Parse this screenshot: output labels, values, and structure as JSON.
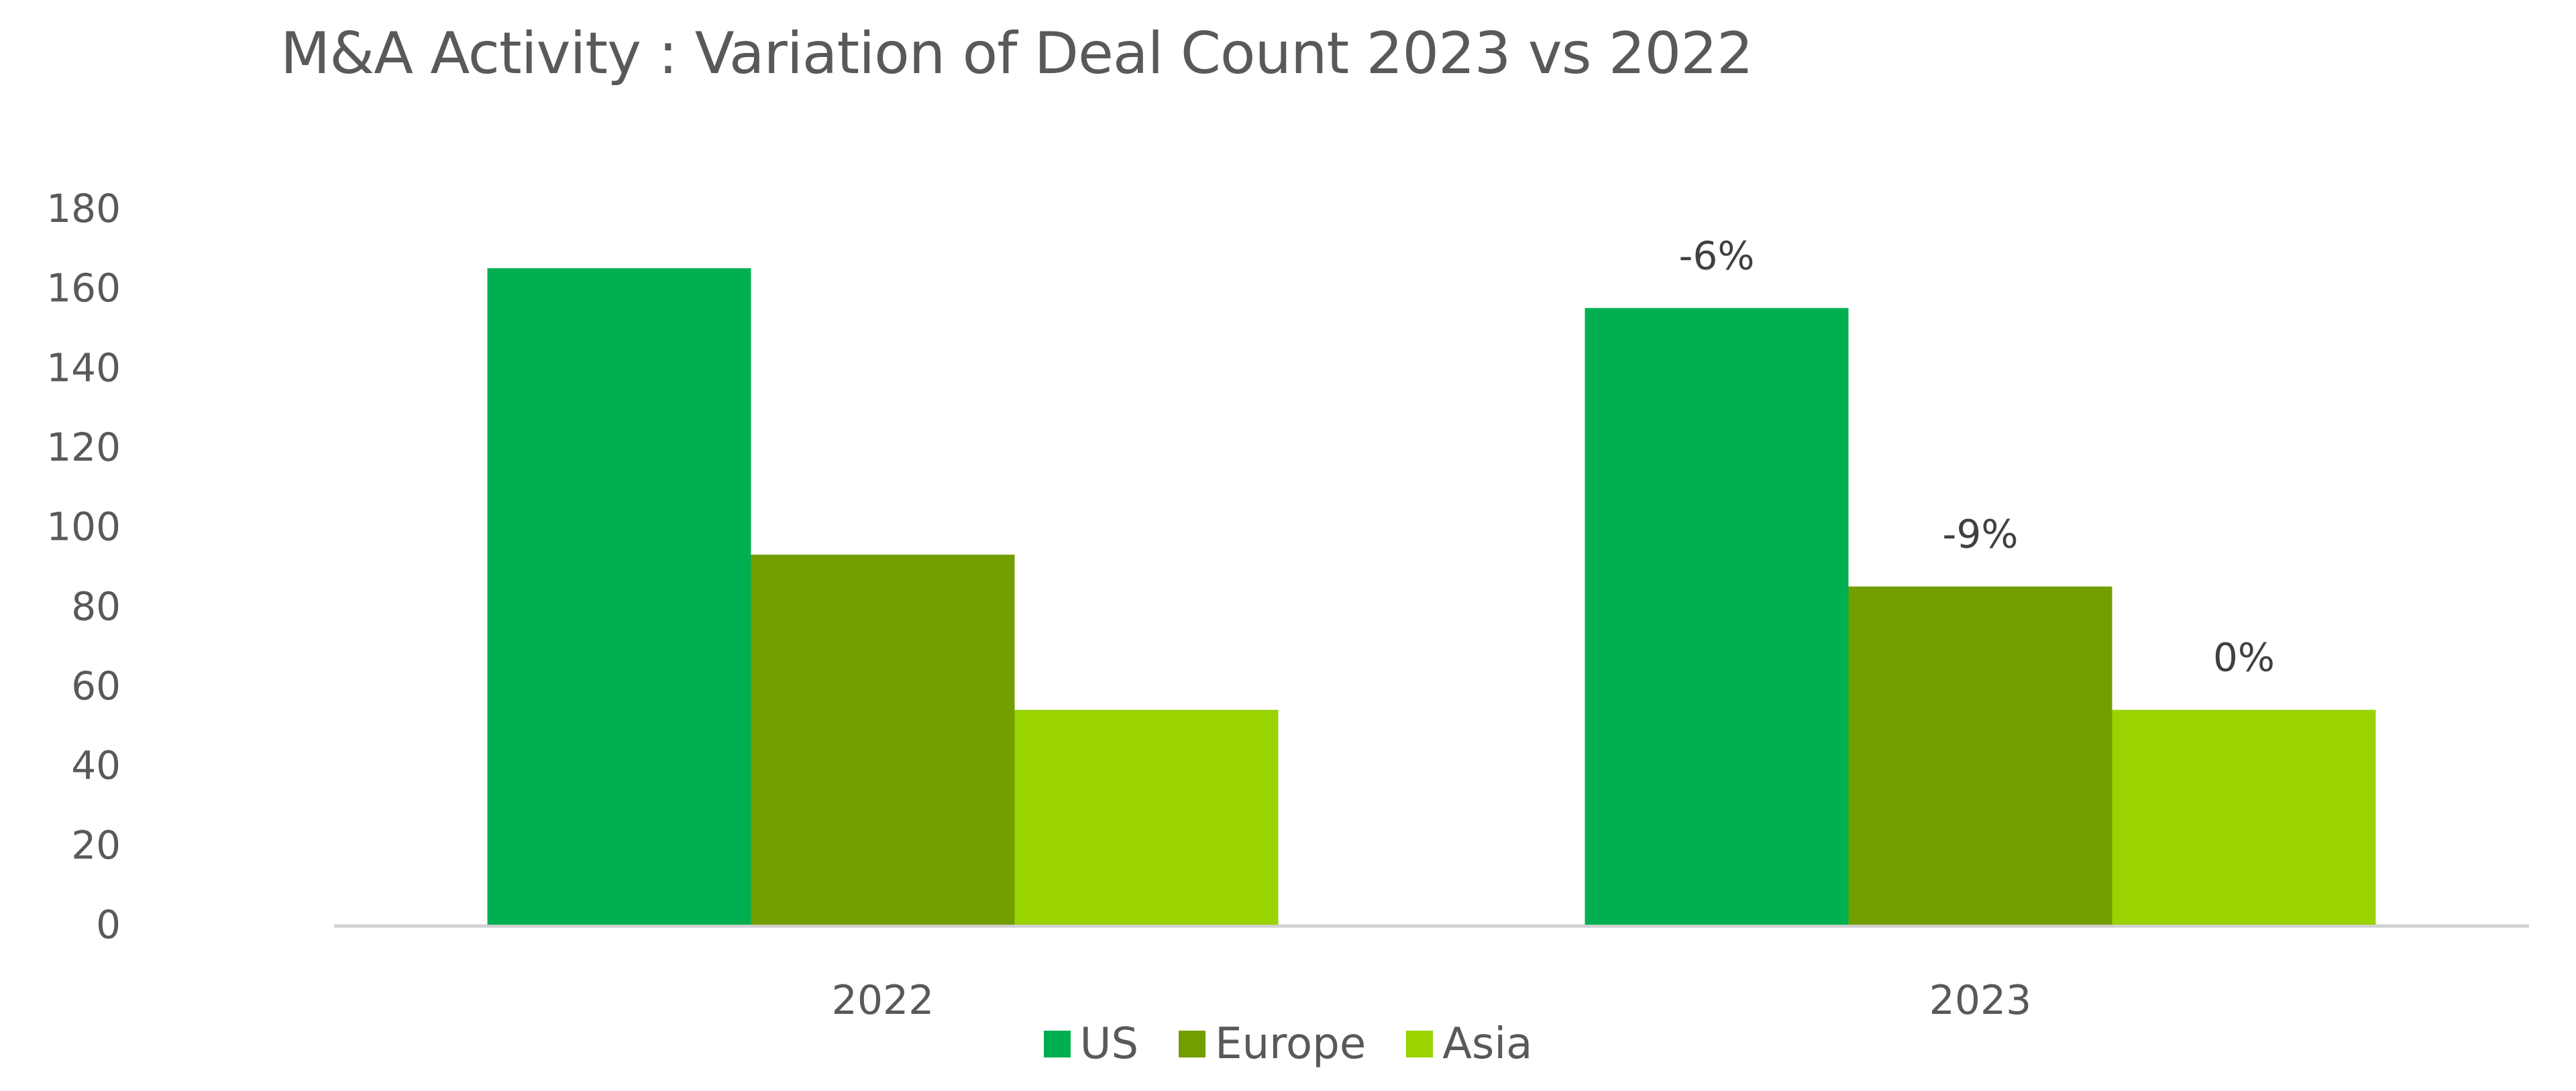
{
  "chart_data": {
    "type": "bar",
    "title": "M&A Activity : Variation of Deal Count 2023 vs 2022",
    "xlabel": "",
    "ylabel": "",
    "categories": [
      "2022",
      "2023"
    ],
    "ylim": [
      0,
      180
    ],
    "yticks": [
      "0",
      "20",
      "40",
      "60",
      "80",
      "100",
      "120",
      "140",
      "160",
      "180"
    ],
    "grid": false,
    "legend_position": "bottom",
    "series": [
      {
        "name": "US",
        "color": "#00B050",
        "values": [
          165,
          155
        ],
        "labels": [
          "",
          "-6%"
        ]
      },
      {
        "name": "Europe",
        "color": "#739E00",
        "values": [
          93,
          85
        ],
        "labels": [
          "",
          "-9%"
        ]
      },
      {
        "name": "Asia",
        "color": "#99D300",
        "values": [
          54,
          54
        ],
        "labels": [
          "",
          "0%"
        ]
      }
    ]
  }
}
